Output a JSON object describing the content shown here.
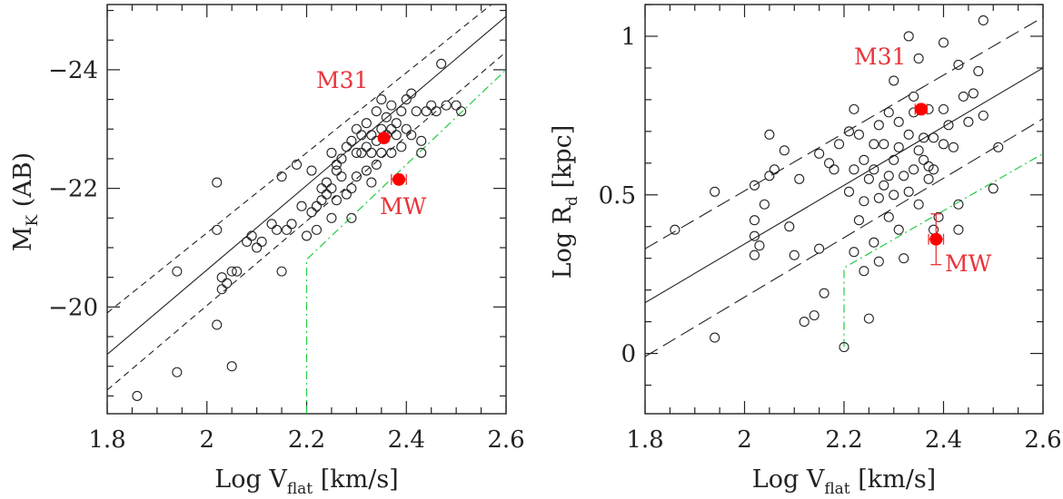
{
  "colors": {
    "open": "#222222",
    "highlight": "#ff0000",
    "annotation": "#e8343a",
    "limit": "#22cc44"
  },
  "chart_data": [
    {
      "type": "scatter",
      "xlabel": "Log V",
      "xlabel_sub": "flat",
      "xlabel_unit": "[km/s]",
      "ylabel": "M",
      "ylabel_sub": "K",
      "ylabel_unit": "(AB)",
      "xlim": [
        1.8,
        2.6
      ],
      "ylim": [
        -18.2,
        -25.1
      ],
      "y_inverted": true,
      "xticks": [
        1.8,
        2.0,
        2.2,
        2.4,
        2.6
      ],
      "xtick_labels": [
        "1.8",
        "2",
        "2.2",
        "2.4",
        "2.6"
      ],
      "yticks": [
        -20,
        -22,
        -24
      ],
      "ytick_labels": [
        "−20",
        "−22",
        "−24"
      ],
      "points": [
        [
          1.86,
          -18.5
        ],
        [
          1.94,
          -20.6
        ],
        [
          1.94,
          -18.9
        ],
        [
          2.02,
          -22.1
        ],
        [
          2.02,
          -21.3
        ],
        [
          2.02,
          -19.7
        ],
        [
          2.03,
          -20.3
        ],
        [
          2.03,
          -20.5
        ],
        [
          2.04,
          -20.4
        ],
        [
          2.05,
          -19.0
        ],
        [
          2.05,
          -20.6
        ],
        [
          2.06,
          -20.6
        ],
        [
          2.08,
          -21.1
        ],
        [
          2.09,
          -21.2
        ],
        [
          2.1,
          -21.0
        ],
        [
          2.11,
          -21.1
        ],
        [
          2.13,
          -21.4
        ],
        [
          2.14,
          -21.3
        ],
        [
          2.15,
          -22.2
        ],
        [
          2.15,
          -20.6
        ],
        [
          2.16,
          -21.3
        ],
        [
          2.17,
          -21.4
        ],
        [
          2.18,
          -22.4
        ],
        [
          2.19,
          -21.7
        ],
        [
          2.2,
          -21.2
        ],
        [
          2.21,
          -21.6
        ],
        [
          2.21,
          -22.3
        ],
        [
          2.22,
          -21.7
        ],
        [
          2.22,
          -21.3
        ],
        [
          2.23,
          -22.0
        ],
        [
          2.23,
          -21.8
        ],
        [
          2.24,
          -22.1
        ],
        [
          2.24,
          -21.9
        ],
        [
          2.25,
          -22.0
        ],
        [
          2.25,
          -21.5
        ],
        [
          2.25,
          -22.6
        ],
        [
          2.26,
          -22.3
        ],
        [
          2.26,
          -22.4
        ],
        [
          2.26,
          -21.8
        ],
        [
          2.27,
          -22.2
        ],
        [
          2.27,
          -22.5
        ],
        [
          2.28,
          -21.9
        ],
        [
          2.28,
          -22.7
        ],
        [
          2.29,
          -22.0
        ],
        [
          2.29,
          -22.8
        ],
        [
          2.29,
          -21.5
        ],
        [
          2.3,
          -22.6
        ],
        [
          2.3,
          -23.0
        ],
        [
          2.3,
          -22.2
        ],
        [
          2.31,
          -22.6
        ],
        [
          2.31,
          -22.9
        ],
        [
          2.32,
          -22.7
        ],
        [
          2.32,
          -23.1
        ],
        [
          2.32,
          -22.3
        ],
        [
          2.33,
          -22.6
        ],
        [
          2.33,
          -22.9
        ],
        [
          2.33,
          -22.1
        ],
        [
          2.34,
          -23.3
        ],
        [
          2.34,
          -22.8
        ],
        [
          2.34,
          -22.4
        ],
        [
          2.35,
          -23.0
        ],
        [
          2.35,
          -22.6
        ],
        [
          2.35,
          -23.5
        ],
        [
          2.36,
          -22.9
        ],
        [
          2.36,
          -23.2
        ],
        [
          2.37,
          -23.0
        ],
        [
          2.37,
          -22.6
        ],
        [
          2.37,
          -23.4
        ],
        [
          2.38,
          -22.9
        ],
        [
          2.38,
          -23.1
        ],
        [
          2.39,
          -22.7
        ],
        [
          2.39,
          -23.3
        ],
        [
          2.4,
          -23.5
        ],
        [
          2.4,
          -23.0
        ],
        [
          2.41,
          -22.9
        ],
        [
          2.41,
          -23.6
        ],
        [
          2.42,
          -23.3
        ],
        [
          2.43,
          -22.6
        ],
        [
          2.43,
          -22.8
        ],
        [
          2.44,
          -23.3
        ],
        [
          2.45,
          -23.4
        ],
        [
          2.46,
          -23.3
        ],
        [
          2.47,
          -24.1
        ],
        [
          2.48,
          -23.4
        ],
        [
          2.5,
          -23.4
        ],
        [
          2.51,
          -23.3
        ]
      ],
      "fit_line": [
        [
          1.8,
          -19.2
        ],
        [
          2.6,
          -24.9
        ]
      ],
      "upper_line": [
        [
          1.8,
          -19.9
        ],
        [
          2.6,
          -25.3
        ]
      ],
      "lower_line": [
        [
          1.8,
          -18.6
        ],
        [
          2.6,
          -24.3
        ]
      ],
      "limit_line": [
        [
          2.2,
          -18.2
        ],
        [
          2.2,
          -20.8
        ],
        [
          2.6,
          -24.0
        ]
      ],
      "highlights": [
        {
          "name": "M31",
          "x": 2.355,
          "y": -22.85,
          "xerr": 0
        },
        {
          "name": "MW",
          "x": 2.385,
          "y": -22.15,
          "xerr": 0.015
        }
      ]
    },
    {
      "type": "scatter",
      "xlabel": "Log V",
      "xlabel_sub": "flat",
      "xlabel_unit": "[km/s]",
      "ylabel": "Log R",
      "ylabel_sub": "d",
      "ylabel_unit": "[kpc]",
      "xlim": [
        1.8,
        2.6
      ],
      "ylim": [
        -0.19,
        1.1
      ],
      "y_inverted": false,
      "xticks": [
        1.8,
        2.0,
        2.2,
        2.4,
        2.6
      ],
      "xtick_labels": [
        "1.8",
        "2",
        "2.2",
        "2.4",
        "2.6"
      ],
      "yticks": [
        0,
        0.5,
        1
      ],
      "ytick_labels": [
        "0",
        "0.5",
        "1"
      ],
      "points": [
        [
          1.86,
          0.39
        ],
        [
          1.94,
          0.51
        ],
        [
          1.94,
          0.05
        ],
        [
          2.02,
          0.37
        ],
        [
          2.02,
          0.31
        ],
        [
          2.02,
          0.53
        ],
        [
          2.02,
          0.42
        ],
        [
          2.03,
          0.34
        ],
        [
          2.04,
          0.47
        ],
        [
          2.05,
          0.69
        ],
        [
          2.05,
          0.56
        ],
        [
          2.06,
          0.58
        ],
        [
          2.08,
          0.64
        ],
        [
          2.09,
          0.4
        ],
        [
          2.1,
          0.31
        ],
        [
          2.11,
          0.55
        ],
        [
          2.12,
          0.1
        ],
        [
          2.14,
          0.12
        ],
        [
          2.15,
          0.63
        ],
        [
          2.15,
          0.33
        ],
        [
          2.16,
          0.19
        ],
        [
          2.17,
          0.6
        ],
        [
          2.18,
          0.58
        ],
        [
          2.19,
          0.66
        ],
        [
          2.2,
          0.02
        ],
        [
          2.21,
          0.7
        ],
        [
          2.21,
          0.51
        ],
        [
          2.22,
          0.58
        ],
        [
          2.22,
          0.32
        ],
        [
          2.22,
          0.77
        ],
        [
          2.23,
          0.69
        ],
        [
          2.23,
          0.42
        ],
        [
          2.24,
          0.48
        ],
        [
          2.24,
          0.61
        ],
        [
          2.24,
          0.26
        ],
        [
          2.25,
          0.55
        ],
        [
          2.25,
          0.11
        ],
        [
          2.26,
          0.58
        ],
        [
          2.26,
          0.66
        ],
        [
          2.26,
          0.35
        ],
        [
          2.27,
          0.72
        ],
        [
          2.27,
          0.49
        ],
        [
          2.27,
          0.29
        ],
        [
          2.28,
          0.53
        ],
        [
          2.28,
          0.66
        ],
        [
          2.29,
          0.56
        ],
        [
          2.29,
          0.76
        ],
        [
          2.29,
          0.43
        ],
        [
          2.3,
          0.61
        ],
        [
          2.3,
          0.86
        ],
        [
          2.3,
          0.5
        ],
        [
          2.31,
          0.65
        ],
        [
          2.31,
          0.39
        ],
        [
          2.31,
          0.73
        ],
        [
          2.32,
          0.56
        ],
        [
          2.32,
          0.3
        ],
        [
          2.33,
          0.69
        ],
        [
          2.33,
          1.0
        ],
        [
          2.33,
          0.51
        ],
        [
          2.34,
          0.76
        ],
        [
          2.34,
          0.81
        ],
        [
          2.34,
          0.58
        ],
        [
          2.35,
          0.64
        ],
        [
          2.35,
          0.47
        ],
        [
          2.35,
          0.93
        ],
        [
          2.36,
          0.68
        ],
        [
          2.36,
          0.61
        ],
        [
          2.37,
          0.59
        ],
        [
          2.37,
          0.77
        ],
        [
          2.37,
          0.55
        ],
        [
          2.38,
          0.58
        ],
        [
          2.38,
          0.68
        ],
        [
          2.38,
          0.39
        ],
        [
          2.39,
          0.43
        ],
        [
          2.4,
          0.98
        ],
        [
          2.4,
          0.77
        ],
        [
          2.4,
          0.66
        ],
        [
          2.41,
          0.72
        ],
        [
          2.42,
          0.65
        ],
        [
          2.43,
          0.91
        ],
        [
          2.43,
          0.47
        ],
        [
          2.43,
          0.39
        ],
        [
          2.44,
          0.81
        ],
        [
          2.45,
          0.73
        ],
        [
          2.46,
          0.82
        ],
        [
          2.47,
          0.89
        ],
        [
          2.48,
          0.75
        ],
        [
          2.48,
          1.05
        ],
        [
          2.5,
          0.52
        ],
        [
          2.51,
          0.65
        ]
      ],
      "fit_line": [
        [
          1.8,
          0.16
        ],
        [
          2.6,
          0.9
        ]
      ],
      "upper_line": [
        [
          1.8,
          0.33
        ],
        [
          2.6,
          1.06
        ]
      ],
      "lower_line": [
        [
          1.8,
          -0.01
        ],
        [
          2.6,
          0.74
        ]
      ],
      "limit_line": [
        [
          2.2,
          0.02
        ],
        [
          2.2,
          0.27
        ],
        [
          2.6,
          0.63
        ]
      ],
      "highlights": [
        {
          "name": "M31",
          "x": 2.355,
          "y": 0.77,
          "xerr": 0.012,
          "yerr": 0
        },
        {
          "name": "MW",
          "x": 2.385,
          "y": 0.36,
          "xerr": 0.015,
          "yerr": 0.08
        }
      ]
    }
  ]
}
